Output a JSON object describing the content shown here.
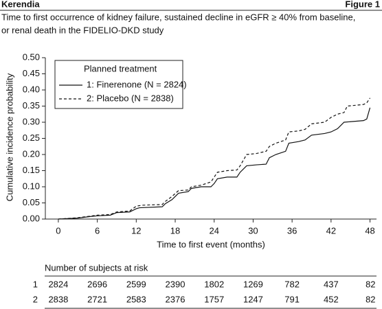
{
  "chart_data": {
    "type": "line",
    "header": "Kerendia",
    "figure_label": "Figure 1",
    "subtitle": [
      "Time to first occurrence of kidney failure, sustained decline in eGFR ≥ 40% from baseline,",
      "or renal death in the FIDELIO-DKD study"
    ],
    "x_label": "Time to first event (months)",
    "y_label": "Cumulative incidence probability",
    "legend_title": "Planned treatment",
    "legend": "upper left",
    "xlim": [
      -2,
      49
    ],
    "ylim": [
      0,
      0.5
    ],
    "xticks": [
      0,
      6,
      12,
      18,
      24,
      30,
      36,
      42,
      48
    ],
    "yticks": [
      {
        "value": 0,
        "label": "0.00"
      },
      0.05,
      {
        "value": 0.1,
        "label": "0.10"
      },
      0.15,
      {
        "value": 0.2,
        "label": "0.20"
      },
      0.25,
      {
        "value": 0.3,
        "label": "0.30"
      },
      0.35,
      {
        "value": 0.4,
        "label": "0.40"
      },
      0.45,
      {
        "value": 0.5,
        "label": "0.50"
      }
    ],
    "series": [
      {
        "name": "1: Finerenone (N = 2824)",
        "color": "#111111",
        "dash": "solid",
        "x": [
          0,
          3,
          5,
          6,
          8,
          9,
          11,
          12,
          12.5,
          16,
          16.5,
          17.5,
          18.5,
          20,
          20.5,
          22,
          23.5,
          24,
          24.5,
          26,
          27.5,
          28,
          29,
          30.5,
          32,
          32.5,
          33.5,
          35,
          35.5,
          37,
          38,
          39,
          41,
          42,
          43,
          44,
          47,
          47.5,
          48
        ],
        "values": [
          0,
          0.003,
          0.008,
          0.01,
          0.012,
          0.02,
          0.022,
          0.032,
          0.035,
          0.038,
          0.048,
          0.06,
          0.08,
          0.085,
          0.095,
          0.1,
          0.1,
          0.11,
          0.125,
          0.13,
          0.13,
          0.145,
          0.165,
          0.168,
          0.17,
          0.19,
          0.2,
          0.21,
          0.235,
          0.24,
          0.245,
          0.26,
          0.265,
          0.27,
          0.28,
          0.3,
          0.305,
          0.31,
          0.345
        ]
      },
      {
        "name": "2: Placebo (N = 2838)",
        "color": "#111111",
        "dash": "dashed",
        "x": [
          0,
          3,
          6,
          8,
          9,
          11,
          12,
          13,
          16,
          16.5,
          17.5,
          18.5,
          20,
          20.5,
          22,
          23.5,
          24,
          24.5,
          26,
          27.5,
          28,
          29,
          30.5,
          32,
          32.5,
          33.5,
          35,
          35.5,
          37,
          38,
          39,
          41,
          42,
          43,
          44,
          44.5,
          47,
          47.5,
          48
        ],
        "values": [
          0,
          0.004,
          0.012,
          0.014,
          0.022,
          0.025,
          0.04,
          0.043,
          0.045,
          0.055,
          0.07,
          0.088,
          0.09,
          0.1,
          0.105,
          0.115,
          0.13,
          0.145,
          0.15,
          0.152,
          0.165,
          0.2,
          0.203,
          0.21,
          0.225,
          0.235,
          0.245,
          0.27,
          0.273,
          0.278,
          0.295,
          0.3,
          0.315,
          0.325,
          0.33,
          0.35,
          0.355,
          0.36,
          0.375
        ]
      }
    ],
    "risk_table": {
      "title": "Number of subjects at risk",
      "rows": [
        {
          "label": "1",
          "values": [
            2824,
            2696,
            2599,
            2390,
            1802,
            1269,
            782,
            437,
            82
          ]
        },
        {
          "label": "2",
          "values": [
            2838,
            2721,
            2583,
            2376,
            1757,
            1247,
            791,
            452,
            82
          ]
        }
      ]
    }
  }
}
